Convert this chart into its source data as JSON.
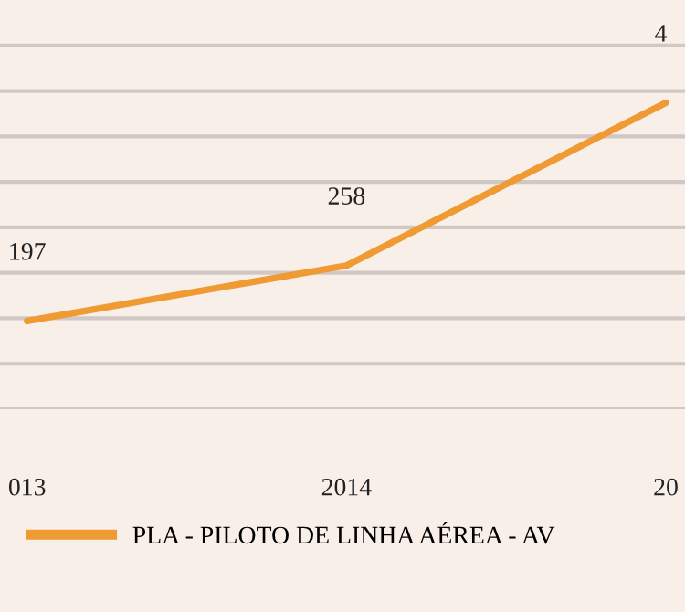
{
  "chart_data": {
    "type": "line",
    "categories": [
      "013",
      "2014",
      "20"
    ],
    "series": [
      {
        "name": "PLA - PILOTO DE LINHA AÉREA - AV",
        "color": "#ef9a33",
        "values": [
          197,
          258,
          437
        ],
        "value_labels": [
          "197",
          "258",
          null
        ]
      }
    ],
    "annotations": [
      "4"
    ],
    "ylim": [
      100,
      550
    ],
    "yticks": [
      {
        "value": 100,
        "label": null
      },
      {
        "value": 150,
        "label": null
      },
      {
        "value": 200,
        "label": null
      },
      {
        "value": 250,
        "label": null
      },
      {
        "value": 300,
        "label": null
      },
      {
        "value": 350,
        "label": null
      },
      {
        "value": 400,
        "label": null
      },
      {
        "value": 450,
        "label": null
      },
      {
        "value": 500,
        "label": null
      }
    ],
    "grid": "y",
    "legend": "bottom",
    "marker": "none",
    "line_style": "solid"
  }
}
